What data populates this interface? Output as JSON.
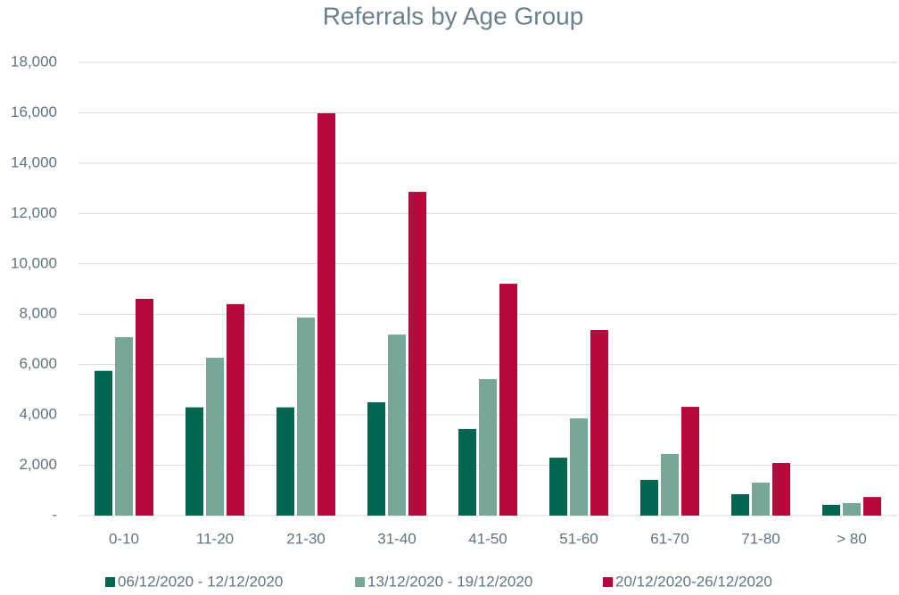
{
  "chart_data": {
    "type": "bar",
    "title": "Referrals by Age Group",
    "categories": [
      "0-10",
      "11-20",
      "21-30",
      "31-40",
      "41-50",
      "51-60",
      "61-70",
      "71-80",
      "> 80"
    ],
    "series": [
      {
        "name": "06/12/2020 - 12/12/2020",
        "color": "#00664f",
        "values": [
          5750,
          4300,
          4300,
          4500,
          3440,
          2300,
          1420,
          850,
          430
        ]
      },
      {
        "name": "13/12/2020 - 19/12/2020",
        "color": "#76a797",
        "values": [
          7090,
          6270,
          7870,
          7190,
          5420,
          3860,
          2450,
          1310,
          500
        ]
      },
      {
        "name": "20/12/2020-26/12/2020",
        "color": "#b5093b",
        "values": [
          8610,
          8400,
          15980,
          12860,
          9210,
          7370,
          4320,
          2090,
          740
        ]
      }
    ],
    "ylim": [
      0,
      18000
    ],
    "yticks": [
      {
        "value": 0,
        "label": "-"
      },
      {
        "value": 2000,
        "label": "2,000"
      },
      {
        "value": 4000,
        "label": "4,000"
      },
      {
        "value": 6000,
        "label": "6,000"
      },
      {
        "value": 8000,
        "label": "8,000"
      },
      {
        "value": 10000,
        "label": "10,000"
      },
      {
        "value": 12000,
        "label": "12,000"
      },
      {
        "value": 14000,
        "label": "14,000"
      },
      {
        "value": 16000,
        "label": "16,000"
      },
      {
        "value": 18000,
        "label": "18,000"
      }
    ],
    "grid": true,
    "legend": "bottom"
  }
}
